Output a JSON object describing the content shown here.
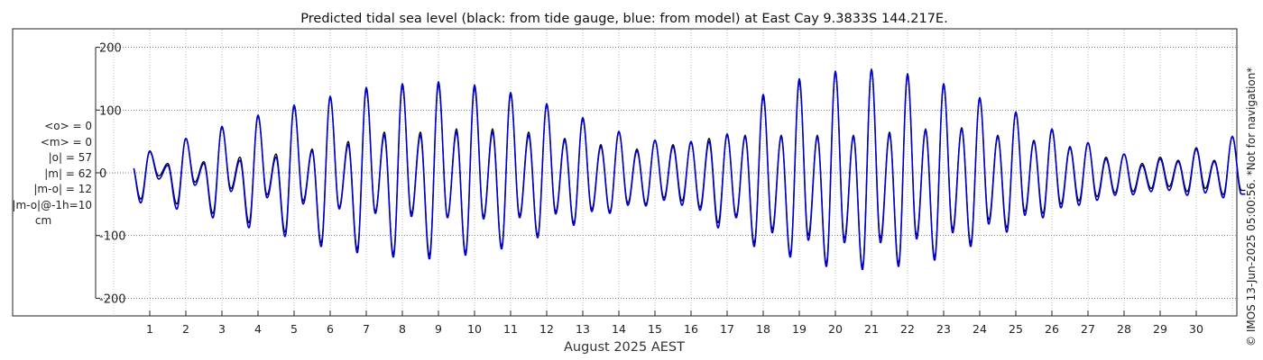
{
  "chart_data": {
    "type": "line",
    "title": "Predicted tidal sea level (black: from tide gauge, blue: from model) at East Cay 9.3833S 144.217E.",
    "xlabel": "August 2025 AEST",
    "ylabel": "",
    "x_unit": "day of August 2025",
    "xlim": [
      0.0,
      31.0
    ],
    "ylim": [
      -230,
      230
    ],
    "y_ticks": [
      200,
      100,
      0,
      -100,
      -200
    ],
    "x_ticks": [
      "1",
      "2",
      "3",
      "4",
      "5",
      "6",
      "7",
      "8",
      "9",
      "10",
      "11",
      "12",
      "13",
      "14",
      "15",
      "16",
      "17",
      "18",
      "19",
      "20",
      "21",
      "22",
      "23",
      "24",
      "25",
      "26",
      "27",
      "28",
      "29",
      "30"
    ],
    "grid": true,
    "series": [
      {
        "color": "#000000",
        "values": [
          {
            "day": 1.0,
            "hi1": 35,
            "lo1": -42,
            "hi2": 15,
            "lo2": -5
          },
          {
            "day": 2.0,
            "hi1": 55,
            "lo1": -50,
            "hi2": 15,
            "lo2": -15
          },
          {
            "day": 3.0,
            "hi1": 72,
            "lo1": -65,
            "hi2": 18,
            "lo2": -25
          },
          {
            "day": 4.0,
            "hi1": 90,
            "lo1": -80,
            "hi2": 25,
            "lo2": -35
          },
          {
            "day": 5.0,
            "hi1": 105,
            "lo1": -95,
            "hi2": 30,
            "lo2": -45
          },
          {
            "day": 6.0,
            "hi1": 120,
            "lo1": -112,
            "hi2": 38,
            "lo2": -55
          },
          {
            "day": 7.0,
            "hi1": 132,
            "lo1": -122,
            "hi2": 50,
            "lo2": -62
          },
          {
            "day": 8.0,
            "hi1": 138,
            "lo1": -130,
            "hi2": 65,
            "lo2": -65
          },
          {
            "day": 9.0,
            "hi1": 140,
            "lo1": -132,
            "hi2": 65,
            "lo2": -70
          },
          {
            "day": 10.0,
            "hi1": 135,
            "lo1": -128,
            "hi2": 70,
            "lo2": -70
          },
          {
            "day": 11.0,
            "hi1": 125,
            "lo1": -118,
            "hi2": 70,
            "lo2": -68
          },
          {
            "day": 12.0,
            "hi1": 108,
            "lo1": -100,
            "hi2": 65,
            "lo2": -62
          },
          {
            "day": 13.0,
            "hi1": 85,
            "lo1": -80,
            "hi2": 55,
            "lo2": -58
          },
          {
            "day": 14.0,
            "hi1": 65,
            "lo1": -62,
            "hi2": 45,
            "lo2": -48
          },
          {
            "day": 15.0,
            "hi1": 52,
            "lo1": -50,
            "hi2": 38,
            "lo2": -40
          },
          {
            "day": 16.0,
            "hi1": 48,
            "lo1": -45,
            "hi2": 45,
            "lo2": -55
          },
          {
            "day": 17.0,
            "hi1": 60,
            "lo1": -80,
            "hi2": 55,
            "lo2": -68
          },
          {
            "day": 18.0,
            "hi1": 120,
            "lo1": -112,
            "hi2": 60,
            "lo2": -90
          },
          {
            "day": 19.0,
            "hi1": 145,
            "lo1": -130,
            "hi2": 60,
            "lo2": -100
          },
          {
            "day": 20.0,
            "hi1": 160,
            "lo1": -145,
            "hi2": 60,
            "lo2": -105
          },
          {
            "day": 21.0,
            "hi1": 165,
            "lo1": -150,
            "hi2": 60,
            "lo2": -105
          },
          {
            "day": 22.0,
            "hi1": 155,
            "lo1": -145,
            "hi2": 65,
            "lo2": -100
          },
          {
            "day": 23.0,
            "hi1": 140,
            "lo1": -135,
            "hi2": 70,
            "lo2": -90
          },
          {
            "day": 24.0,
            "hi1": 118,
            "lo1": -112,
            "hi2": 72,
            "lo2": -75
          },
          {
            "day": 25.0,
            "hi1": 95,
            "lo1": -88,
            "hi2": 60,
            "lo2": -62
          },
          {
            "day": 26.0,
            "hi1": 68,
            "lo1": -65,
            "hi2": 52,
            "lo2": -50
          },
          {
            "day": 27.0,
            "hi1": 48,
            "lo1": -45,
            "hi2": 42,
            "lo2": -38
          },
          {
            "day": 28.0,
            "hi1": 30,
            "lo1": -32,
            "hi2": 25,
            "lo2": -30
          },
          {
            "day": 29.0,
            "hi1": 25,
            "lo1": -25,
            "hi2": 15,
            "lo2": -22
          },
          {
            "day": 30.0,
            "hi1": 40,
            "lo1": -30,
            "hi2": 20,
            "lo2": -25
          },
          {
            "day": 31.0,
            "hi1": 58,
            "lo1": -35,
            "hi2": 20,
            "lo2": -28
          }
        ]
      },
      {
        "color": "#0000cc",
        "values": [
          {
            "day": 1.0,
            "hi1": 34,
            "lo1": -48,
            "hi2": 15,
            "lo2": -10
          },
          {
            "day": 2.0,
            "hi1": 55,
            "lo1": -58,
            "hi2": 12,
            "lo2": -20
          },
          {
            "day": 3.0,
            "hi1": 74,
            "lo1": -72,
            "hi2": 15,
            "lo2": -30
          },
          {
            "day": 4.0,
            "hi1": 92,
            "lo1": -88,
            "hi2": 20,
            "lo2": -40
          },
          {
            "day": 5.0,
            "hi1": 108,
            "lo1": -102,
            "hi2": 25,
            "lo2": -50
          },
          {
            "day": 6.0,
            "hi1": 122,
            "lo1": -118,
            "hi2": 35,
            "lo2": -58
          },
          {
            "day": 7.0,
            "hi1": 136,
            "lo1": -128,
            "hi2": 45,
            "lo2": -65
          },
          {
            "day": 8.0,
            "hi1": 142,
            "lo1": -135,
            "hi2": 60,
            "lo2": -70
          },
          {
            "day": 9.0,
            "hi1": 145,
            "lo1": -138,
            "hi2": 60,
            "lo2": -72
          },
          {
            "day": 10.0,
            "hi1": 140,
            "lo1": -132,
            "hi2": 65,
            "lo2": -74
          },
          {
            "day": 11.0,
            "hi1": 128,
            "lo1": -122,
            "hi2": 65,
            "lo2": -72
          },
          {
            "day": 12.0,
            "hi1": 110,
            "lo1": -104,
            "hi2": 60,
            "lo2": -66
          },
          {
            "day": 13.0,
            "hi1": 88,
            "lo1": -84,
            "hi2": 52,
            "lo2": -62
          },
          {
            "day": 14.0,
            "hi1": 66,
            "lo1": -65,
            "hi2": 42,
            "lo2": -52
          },
          {
            "day": 15.0,
            "hi1": 52,
            "lo1": -53,
            "hi2": 35,
            "lo2": -44
          },
          {
            "day": 16.0,
            "hi1": 50,
            "lo1": -52,
            "hi2": 42,
            "lo2": -60
          },
          {
            "day": 17.0,
            "hi1": 62,
            "lo1": -88,
            "hi2": 50,
            "lo2": -72
          },
          {
            "day": 18.0,
            "hi1": 125,
            "lo1": -118,
            "hi2": 58,
            "lo2": -96
          },
          {
            "day": 19.0,
            "hi1": 150,
            "lo1": -135,
            "hi2": 58,
            "lo2": -108
          },
          {
            "day": 20.0,
            "hi1": 162,
            "lo1": -150,
            "hi2": 58,
            "lo2": -112
          },
          {
            "day": 21.0,
            "hi1": 165,
            "lo1": -155,
            "hi2": 58,
            "lo2": -112
          },
          {
            "day": 22.0,
            "hi1": 158,
            "lo1": -150,
            "hi2": 62,
            "lo2": -106
          },
          {
            "day": 23.0,
            "hi1": 142,
            "lo1": -140,
            "hi2": 68,
            "lo2": -96
          },
          {
            "day": 24.0,
            "hi1": 120,
            "lo1": -118,
            "hi2": 70,
            "lo2": -82
          },
          {
            "day": 25.0,
            "hi1": 97,
            "lo1": -95,
            "hi2": 58,
            "lo2": -68
          },
          {
            "day": 26.0,
            "hi1": 70,
            "lo1": -72,
            "hi2": 50,
            "lo2": -56
          },
          {
            "day": 27.0,
            "hi1": 48,
            "lo1": -52,
            "hi2": 40,
            "lo2": -44
          },
          {
            "day": 28.0,
            "hi1": 30,
            "lo1": -36,
            "hi2": 22,
            "lo2": -35
          },
          {
            "day": 29.0,
            "hi1": 22,
            "lo1": -30,
            "hi2": 12,
            "lo2": -28
          },
          {
            "day": 30.0,
            "hi1": 38,
            "lo1": -36,
            "hi2": 18,
            "lo2": -32
          },
          {
            "day": 31.0,
            "hi1": 58,
            "lo1": -40,
            "hi2": 18,
            "lo2": -34
          }
        ]
      }
    ]
  },
  "stats": {
    "mean_obs": "<o> = 0",
    "mean_model": "<m> = 0",
    "abs_obs": "|o| = 57",
    "abs_model": "|m| = 62",
    "abs_diff": "|m-o| = 12",
    "abs_diff_lag": "|m-o|@-1h=10",
    "unit": "cm"
  },
  "credit": "© IMOS 13-Jun-2025 05:00:56. *Not for navigation*"
}
